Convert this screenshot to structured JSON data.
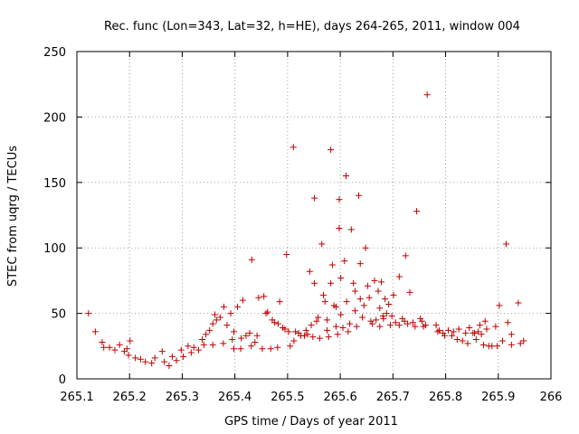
{
  "chart_data": {
    "type": "scatter",
    "title": "Rec. func (Lon=343, Lat=32, h=HE), days 264-265, 2011, window 004",
    "xlabel": "GPS time / Days of year 2011",
    "ylabel": "STEC from uqrg / TECUs",
    "xlim": [
      265.1,
      266.0
    ],
    "ylim": [
      0,
      250
    ],
    "x_ticks": [
      "265.1",
      "265.2",
      "265.3",
      "265.4",
      "265.5",
      "265.6",
      "265.7",
      "265.8",
      "265.9",
      "266"
    ],
    "y_ticks": [
      "0",
      "50",
      "100",
      "150",
      "200",
      "250"
    ],
    "grid": true,
    "marker": "+",
    "color": "#c00000",
    "points": [
      [
        265.122,
        50
      ],
      [
        265.135,
        36
      ],
      [
        265.148,
        28
      ],
      [
        265.151,
        24
      ],
      [
        265.162,
        24
      ],
      [
        265.172,
        22
      ],
      [
        265.181,
        26
      ],
      [
        265.19,
        21
      ],
      [
        265.195,
        23
      ],
      [
        265.198,
        18
      ],
      [
        265.201,
        29
      ],
      [
        265.211,
        16
      ],
      [
        265.221,
        15
      ],
      [
        265.23,
        13
      ],
      [
        265.242,
        12
      ],
      [
        265.248,
        16
      ],
      [
        265.262,
        21
      ],
      [
        265.266,
        13
      ],
      [
        265.275,
        10
      ],
      [
        265.281,
        17
      ],
      [
        265.289,
        14
      ],
      [
        265.298,
        22
      ],
      [
        265.302,
        17
      ],
      [
        265.311,
        25
      ],
      [
        265.317,
        20
      ],
      [
        265.322,
        24
      ],
      [
        265.331,
        22
      ],
      [
        265.341,
        26
      ],
      [
        265.358,
        26
      ],
      [
        265.362,
        49
      ],
      [
        265.378,
        27
      ],
      [
        265.379,
        55
      ],
      [
        265.398,
        23
      ],
      [
        265.398,
        36
      ],
      [
        265.411,
        23
      ],
      [
        265.415,
        60
      ],
      [
        265.432,
        91
      ],
      [
        265.431,
        25
      ],
      [
        265.438,
        28
      ],
      [
        265.445,
        62
      ],
      [
        265.452,
        23
      ],
      [
        265.455,
        63
      ],
      [
        265.459,
        50
      ],
      [
        265.468,
        23
      ],
      [
        265.471,
        45
      ],
      [
        265.481,
        24
      ],
      [
        265.485,
        59
      ],
      [
        265.491,
        39
      ],
      [
        265.498,
        95
      ],
      [
        265.502,
        36
      ],
      [
        265.505,
        25
      ],
      [
        265.511,
        177
      ],
      [
        265.512,
        29
      ],
      [
        265.521,
        35
      ],
      [
        265.532,
        33
      ],
      [
        265.538,
        34
      ],
      [
        265.542,
        82
      ],
      [
        265.551,
        138
      ],
      [
        265.548,
        32
      ],
      [
        265.551,
        73
      ],
      [
        265.555,
        44
      ],
      [
        265.561,
        31
      ],
      [
        265.565,
        103
      ],
      [
        265.568,
        64
      ],
      [
        265.571,
        59
      ],
      [
        265.575,
        37
      ],
      [
        265.578,
        32
      ],
      [
        265.582,
        175
      ],
      [
        265.585,
        87
      ],
      [
        265.588,
        56
      ],
      [
        265.592,
        40
      ],
      [
        265.595,
        34
      ],
      [
        265.598,
        115
      ],
      [
        265.598,
        137
      ],
      [
        265.601,
        77
      ],
      [
        265.601,
        49
      ],
      [
        265.608,
        90
      ],
      [
        265.611,
        155
      ],
      [
        265.612,
        59
      ],
      [
        265.615,
        36
      ],
      [
        265.621,
        114
      ],
      [
        265.625,
        73
      ],
      [
        265.628,
        67
      ],
      [
        265.631,
        40
      ],
      [
        265.635,
        140
      ],
      [
        265.638,
        88
      ],
      [
        265.638,
        61
      ],
      [
        265.642,
        47
      ],
      [
        265.648,
        100
      ],
      [
        265.652,
        71
      ],
      [
        265.655,
        62
      ],
      [
        265.658,
        44
      ],
      [
        265.661,
        42
      ],
      [
        265.665,
        75
      ],
      [
        265.672,
        67
      ],
      [
        265.675,
        54
      ],
      [
        265.678,
        74
      ],
      [
        265.681,
        48
      ],
      [
        265.685,
        61
      ],
      [
        265.688,
        50
      ],
      [
        265.692,
        57
      ],
      [
        265.695,
        41
      ],
      [
        265.701,
        64
      ],
      [
        265.712,
        78
      ],
      [
        265.718,
        46
      ],
      [
        265.724,
        94
      ],
      [
        265.728,
        42
      ],
      [
        265.738,
        43
      ],
      [
        265.745,
        128
      ],
      [
        265.752,
        46
      ],
      [
        265.758,
        40
      ],
      [
        265.765,
        217
      ],
      [
        265.782,
        41
      ],
      [
        265.788,
        37
      ],
      [
        265.795,
        35
      ],
      [
        265.805,
        37
      ],
      [
        265.815,
        36
      ],
      [
        265.822,
        30
      ],
      [
        265.832,
        29
      ],
      [
        265.838,
        35
      ],
      [
        265.845,
        39
      ],
      [
        265.852,
        35
      ],
      [
        265.858,
        30
      ],
      [
        265.862,
        36
      ],
      [
        265.865,
        41
      ],
      [
        265.872,
        26
      ],
      [
        265.875,
        44
      ],
      [
        265.882,
        25
      ],
      [
        265.888,
        25
      ],
      [
        265.898,
        25
      ],
      [
        265.902,
        56
      ],
      [
        265.908,
        29
      ],
      [
        265.915,
        103
      ],
      [
        265.918,
        43
      ],
      [
        265.925,
        26
      ],
      [
        265.938,
        58
      ],
      [
        265.942,
        27
      ],
      [
        265.948,
        29
      ],
      [
        265.338,
        30
      ],
      [
        265.345,
        34
      ],
      [
        265.352,
        37
      ],
      [
        265.358,
        42
      ],
      [
        265.365,
        45
      ],
      [
        265.372,
        47
      ],
      [
        265.385,
        41
      ],
      [
        265.392,
        50
      ],
      [
        265.395,
        30
      ],
      [
        265.405,
        55
      ],
      [
        265.412,
        31
      ],
      [
        265.421,
        33
      ],
      [
        265.428,
        35
      ],
      [
        265.442,
        33
      ],
      [
        265.462,
        51
      ],
      [
        265.475,
        43
      ],
      [
        265.482,
        42
      ],
      [
        265.495,
        38
      ],
      [
        265.515,
        36
      ],
      [
        265.525,
        33
      ],
      [
        265.535,
        37
      ],
      [
        265.545,
        41
      ],
      [
        265.558,
        47
      ],
      [
        265.575,
        45
      ],
      [
        265.582,
        73
      ],
      [
        265.592,
        55
      ],
      [
        265.605,
        39
      ],
      [
        265.618,
        42
      ],
      [
        265.628,
        52
      ],
      [
        265.645,
        56
      ],
      [
        265.668,
        45
      ],
      [
        265.675,
        40
      ],
      [
        265.682,
        46
      ],
      [
        265.698,
        48
      ],
      [
        265.705,
        43
      ],
      [
        265.712,
        41
      ],
      [
        265.722,
        44
      ],
      [
        265.732,
        66
      ],
      [
        265.742,
        40
      ],
      [
        265.755,
        44
      ],
      [
        265.762,
        41
      ],
      [
        265.785,
        36
      ],
      [
        265.798,
        33
      ],
      [
        265.812,
        33
      ],
      [
        265.825,
        38
      ],
      [
        265.842,
        27
      ],
      [
        265.855,
        35
      ],
      [
        265.868,
        34
      ],
      [
        265.878,
        38
      ],
      [
        265.895,
        40
      ],
      [
        265.925,
        34
      ]
    ]
  }
}
